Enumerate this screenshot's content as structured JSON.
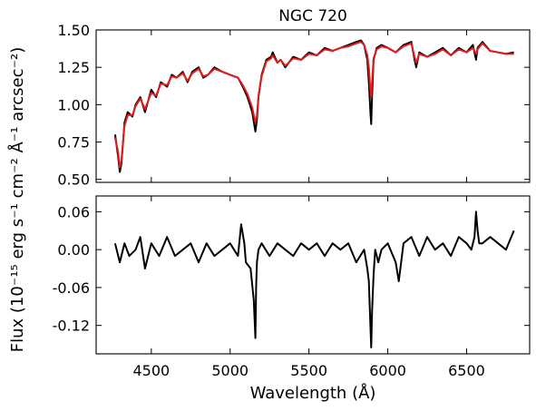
{
  "chart_data": {
    "type": "line",
    "title": "NGC 720",
    "xlabel": "Wavelength (Å)",
    "ylabel": "Flux (10⁻¹⁵ erg s⁻¹ cm⁻² Å⁻¹ arcsec⁻²)",
    "xlim": [
      4150,
      6900
    ],
    "x_ticks": [
      "4500",
      "5000",
      "5500",
      "6000",
      "6500"
    ],
    "x_tick_values": [
      4500,
      5000,
      5500,
      6000,
      6500
    ],
    "panels": [
      {
        "ylim": [
          0.48,
          1.5
        ],
        "y_ticks": [
          "0.50",
          "0.75",
          "1.00",
          "1.25",
          "1.50"
        ],
        "y_tick_values": [
          0.5,
          0.75,
          1.0,
          1.25,
          1.5
        ],
        "series": [
          {
            "color": "#000000",
            "x": [
              4270,
              4290,
              4300,
              4310,
              4330,
              4350,
              4380,
              4400,
              4430,
              4460,
              4500,
              4530,
              4560,
              4600,
              4630,
              4660,
              4700,
              4730,
              4760,
              4800,
              4830,
              4860,
              4900,
              4950,
              5000,
              5050,
              5080,
              5110,
              5140,
              5160,
              5170,
              5180,
              5200,
              5230,
              5260,
              5270,
              5300,
              5320,
              5350,
              5400,
              5450,
              5500,
              5550,
              5600,
              5650,
              5700,
              5750,
              5800,
              5830,
              5850,
              5870,
              5880,
              5890,
              5895,
              5900,
              5910,
              5930,
              5960,
              6000,
              6050,
              6100,
              6150,
              6170,
              6180,
              6200,
              6250,
              6300,
              6350,
              6400,
              6450,
              6500,
              6540,
              6560,
              6570,
              6600,
              6650,
              6700,
              6750,
              6800
            ],
            "values": [
              0.8,
              0.65,
              0.55,
              0.6,
              0.88,
              0.95,
              0.92,
              1.0,
              1.05,
              0.95,
              1.1,
              1.05,
              1.15,
              1.12,
              1.2,
              1.18,
              1.22,
              1.15,
              1.22,
              1.25,
              1.18,
              1.2,
              1.25,
              1.22,
              1.2,
              1.18,
              1.12,
              1.05,
              0.95,
              0.82,
              0.9,
              1.05,
              1.2,
              1.3,
              1.32,
              1.35,
              1.28,
              1.3,
              1.25,
              1.32,
              1.3,
              1.35,
              1.33,
              1.38,
              1.36,
              1.38,
              1.4,
              1.42,
              1.43,
              1.4,
              1.3,
              1.15,
              0.95,
              0.87,
              1.05,
              1.3,
              1.38,
              1.4,
              1.38,
              1.35,
              1.4,
              1.42,
              1.3,
              1.25,
              1.35,
              1.32,
              1.35,
              1.38,
              1.33,
              1.38,
              1.35,
              1.4,
              1.3,
              1.38,
              1.42,
              1.36,
              1.35,
              1.34,
              1.35
            ]
          },
          {
            "color": "#e41a1c",
            "x": [
              4270,
              4290,
              4300,
              4310,
              4330,
              4350,
              4380,
              4400,
              4430,
              4460,
              4500,
              4530,
              4560,
              4600,
              4630,
              4660,
              4700,
              4730,
              4760,
              4800,
              4830,
              4860,
              4900,
              4950,
              5000,
              5050,
              5080,
              5110,
              5140,
              5160,
              5170,
              5180,
              5200,
              5230,
              5260,
              5270,
              5300,
              5320,
              5350,
              5400,
              5450,
              5500,
              5550,
              5600,
              5650,
              5700,
              5750,
              5800,
              5830,
              5850,
              5870,
              5880,
              5890,
              5895,
              5900,
              5910,
              5930,
              5960,
              6000,
              6050,
              6100,
              6150,
              6170,
              6180,
              6200,
              6250,
              6300,
              6350,
              6400,
              6450,
              6500,
              6540,
              6560,
              6570,
              6600,
              6650,
              6700,
              6750,
              6800
            ],
            "values": [
              0.78,
              0.68,
              0.58,
              0.62,
              0.86,
              0.93,
              0.93,
              0.99,
              1.04,
              0.97,
              1.08,
              1.06,
              1.14,
              1.13,
              1.19,
              1.18,
              1.21,
              1.16,
              1.21,
              1.24,
              1.19,
              1.2,
              1.24,
              1.22,
              1.2,
              1.18,
              1.13,
              1.07,
              0.98,
              0.88,
              0.93,
              1.06,
              1.19,
              1.29,
              1.31,
              1.33,
              1.28,
              1.3,
              1.26,
              1.31,
              1.3,
              1.34,
              1.33,
              1.37,
              1.36,
              1.38,
              1.39,
              1.41,
              1.42,
              1.4,
              1.33,
              1.25,
              1.1,
              1.05,
              1.15,
              1.31,
              1.37,
              1.39,
              1.38,
              1.35,
              1.39,
              1.41,
              1.32,
              1.28,
              1.34,
              1.32,
              1.34,
              1.37,
              1.33,
              1.37,
              1.35,
              1.38,
              1.34,
              1.37,
              1.41,
              1.36,
              1.35,
              1.34,
              1.34
            ]
          }
        ]
      },
      {
        "ylim": [
          -0.165,
          0.085
        ],
        "y_ticks": [
          "0.06",
          "0.00",
          "-0.06",
          "-0.12"
        ],
        "y_tick_values": [
          0.06,
          0.0,
          -0.06,
          -0.12
        ],
        "series": [
          {
            "color": "#000000",
            "x": [
              4270,
              4300,
              4330,
              4360,
              4400,
              4430,
              4460,
              4500,
              4550,
              4600,
              4650,
              4700,
              4750,
              4800,
              4850,
              4900,
              4950,
              5000,
              5050,
              5070,
              5090,
              5100,
              5130,
              5150,
              5160,
              5165,
              5170,
              5180,
              5200,
              5250,
              5300,
              5350,
              5400,
              5450,
              5500,
              5550,
              5600,
              5650,
              5700,
              5750,
              5800,
              5850,
              5870,
              5880,
              5890,
              5895,
              5900,
              5910,
              5920,
              5940,
              5960,
              6000,
              6050,
              6070,
              6100,
              6150,
              6200,
              6250,
              6300,
              6350,
              6400,
              6450,
              6500,
              6530,
              6550,
              6560,
              6570,
              6580,
              6600,
              6650,
              6700,
              6750,
              6800
            ],
            "values": [
              0.01,
              -0.02,
              0.01,
              -0.01,
              0.0,
              0.02,
              -0.03,
              0.01,
              -0.01,
              0.02,
              -0.01,
              0.0,
              0.01,
              -0.02,
              0.01,
              -0.01,
              0.0,
              0.01,
              -0.01,
              0.04,
              0.01,
              -0.02,
              -0.03,
              -0.08,
              -0.14,
              -0.06,
              -0.02,
              0.0,
              0.01,
              -0.01,
              0.01,
              0.0,
              -0.01,
              0.01,
              0.0,
              0.01,
              -0.01,
              0.01,
              0.0,
              0.01,
              -0.02,
              0.0,
              -0.03,
              -0.05,
              -0.12,
              -0.155,
              -0.1,
              -0.04,
              0.0,
              -0.02,
              0.0,
              0.01,
              -0.02,
              -0.05,
              0.01,
              0.02,
              -0.01,
              0.02,
              0.0,
              0.01,
              -0.01,
              0.02,
              0.01,
              0.0,
              0.02,
              0.06,
              0.03,
              0.01,
              0.01,
              0.02,
              0.01,
              0.0,
              0.03
            ]
          }
        ]
      }
    ]
  }
}
